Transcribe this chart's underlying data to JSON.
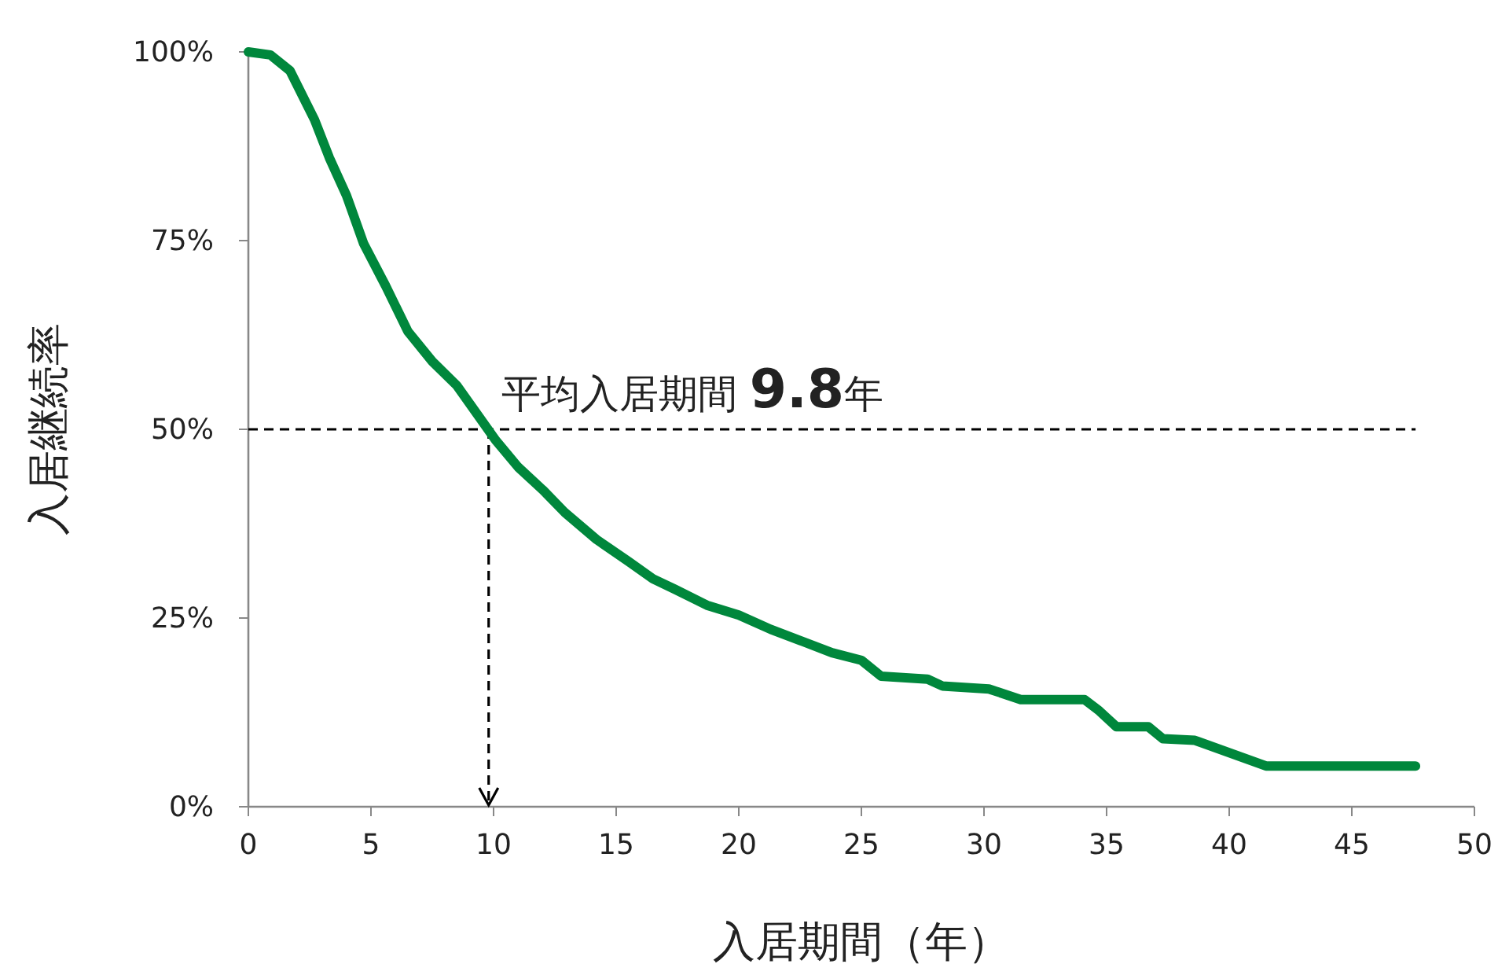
{
  "chart_data": {
    "type": "line",
    "xlabel": "入居期間（年）",
    "ylabel": "入居継続率",
    "xlim": [
      0,
      50
    ],
    "ylim": [
      0,
      100
    ],
    "xticks": [
      0,
      5,
      10,
      15,
      20,
      25,
      30,
      35,
      40,
      45,
      50
    ],
    "yticks": [
      {
        "value": 0,
        "label": "0%"
      },
      {
        "value": 25,
        "label": "25%"
      },
      {
        "value": 50,
        "label": "50%"
      },
      {
        "value": 75,
        "label": "75%"
      },
      {
        "value": 100,
        "label": "100%"
      }
    ],
    "grid": false,
    "marker": "none",
    "line_style": "solid",
    "series": [
      {
        "color": "#00873c",
        "x": [
          0,
          0.9,
          1.7,
          2.7,
          3.3,
          4.0,
          4.7,
          5.6,
          6.5,
          7.5,
          8.5,
          9.4,
          10.1,
          11.0,
          12.0,
          12.9,
          14.2,
          15.5,
          16.5,
          17.4,
          18.7,
          20.0,
          21.3,
          22.6,
          23.8,
          25.0,
          25.8,
          27.7,
          28.3,
          30.2,
          31.5,
          34.1,
          34.7,
          35.4,
          36.7,
          37.3,
          38.6,
          41.5,
          47.6
        ],
        "values": [
          100,
          99.6,
          97.5,
          91,
          86,
          81,
          74.6,
          69,
          63,
          59,
          55.8,
          51.7,
          48.5,
          45,
          42,
          39,
          35.4,
          32.5,
          30.2,
          28.8,
          26.7,
          25.4,
          23.5,
          21.9,
          20.4,
          19.4,
          17.3,
          16.9,
          16,
          15.6,
          14.2,
          14.2,
          12.7,
          10.6,
          10.6,
          9,
          8.8,
          5.4,
          5.4
        ]
      }
    ],
    "ref_lines": [
      {
        "axis": "y",
        "value": 50,
        "line_style": "dashed",
        "color": "#000000"
      },
      {
        "axis": "x",
        "value": 9.8,
        "line_style": "dashed",
        "color": "#000000"
      }
    ],
    "annotations": [
      {
        "text": "平均入居期間 9.8年",
        "x": 9.8,
        "y": 50
      }
    ]
  }
}
